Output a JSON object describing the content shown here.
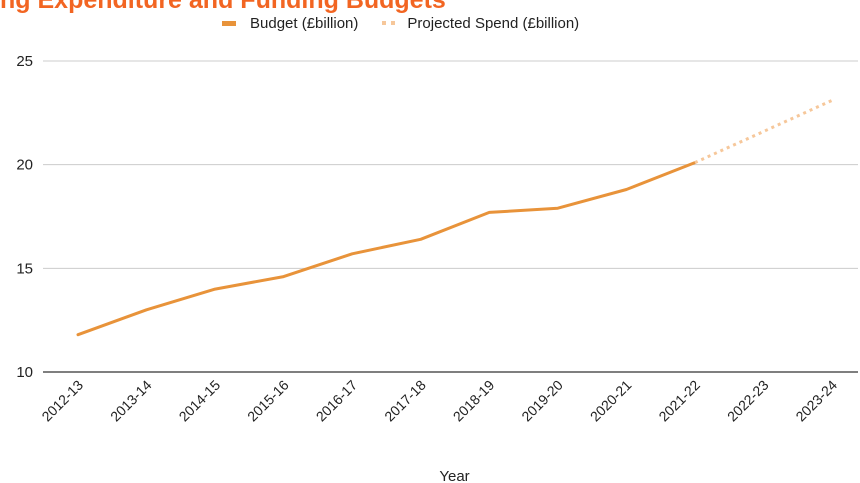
{
  "chart_data": {
    "type": "line",
    "title": "ng Expenditure and Funding Budgets",
    "xlabel": "Year",
    "ylabel": "",
    "ylim": [
      10,
      25
    ],
    "yticks": [
      10,
      15,
      20,
      25
    ],
    "grid": true,
    "legend_position": "top",
    "categories": [
      "2012-13",
      "2013-14",
      "2014-15",
      "2015-16",
      "2016-17",
      "2017-18",
      "2018-19",
      "2019-20",
      "2020-21",
      "2021-22",
      "2022-23",
      "2023-24"
    ],
    "series": [
      {
        "name": "Budget (£billion)",
        "style": "solid",
        "color": "#e8933a",
        "values": [
          11.8,
          13.0,
          14.0,
          14.6,
          15.7,
          16.4,
          17.7,
          17.9,
          18.8,
          20.1,
          null,
          null
        ]
      },
      {
        "name": "Projected Spend (£billion)",
        "style": "dotted",
        "color": "#f6c79a",
        "values": [
          null,
          null,
          null,
          null,
          null,
          null,
          null,
          null,
          null,
          20.1,
          21.6,
          23.1
        ]
      }
    ]
  }
}
